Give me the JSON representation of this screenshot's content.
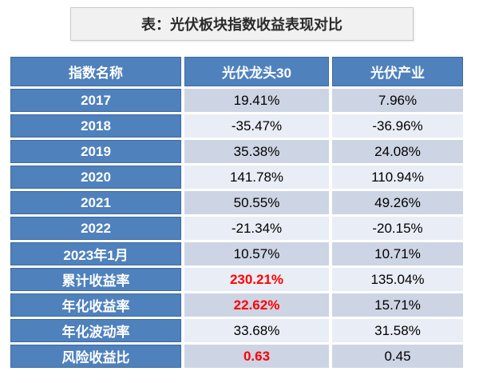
{
  "title": "表：光伏板块指数收益表现对比",
  "colors": {
    "header_blue": "#4F81BD",
    "header_blue_border": "#3D6B9E",
    "band_dark": "#CDD4E4",
    "band_light": "#E9EDF5",
    "highlight_red": "#FF0000",
    "title_background": "#F1F1F1",
    "title_border": "#C9C9C9"
  },
  "chart_data": {
    "type": "table",
    "title": "表：光伏板块指数收益表现对比",
    "columns": [
      "指数名称",
      "光伏龙头30",
      "光伏产业"
    ],
    "rows": [
      {
        "label": "2017",
        "pv30": "19.41%",
        "pvind": "7.96%",
        "pv30_red": false
      },
      {
        "label": "2018",
        "pv30": "-35.47%",
        "pvind": "-36.96%",
        "pv30_red": false
      },
      {
        "label": "2019",
        "pv30": "35.38%",
        "pvind": "24.08%",
        "pv30_red": false
      },
      {
        "label": "2020",
        "pv30": "141.78%",
        "pvind": "110.94%",
        "pv30_red": false
      },
      {
        "label": "2021",
        "pv30": "50.55%",
        "pvind": "49.26%",
        "pv30_red": false
      },
      {
        "label": "2022",
        "pv30": "-21.34%",
        "pvind": "-20.15%",
        "pv30_red": false
      },
      {
        "label": "2023年1月",
        "pv30": "10.57%",
        "pvind": "10.71%",
        "pv30_red": false
      },
      {
        "label": "累计收益率",
        "pv30": "230.21%",
        "pvind": "135.04%",
        "pv30_red": true
      },
      {
        "label": "年化收益率",
        "pv30": "22.62%",
        "pvind": "15.71%",
        "pv30_red": true
      },
      {
        "label": "年化波动率",
        "pv30": "33.68%",
        "pvind": "31.58%",
        "pv30_red": false
      },
      {
        "label": "风险收益比",
        "pv30": "0.63",
        "pvind": "0.45",
        "pv30_red": true
      }
    ]
  }
}
